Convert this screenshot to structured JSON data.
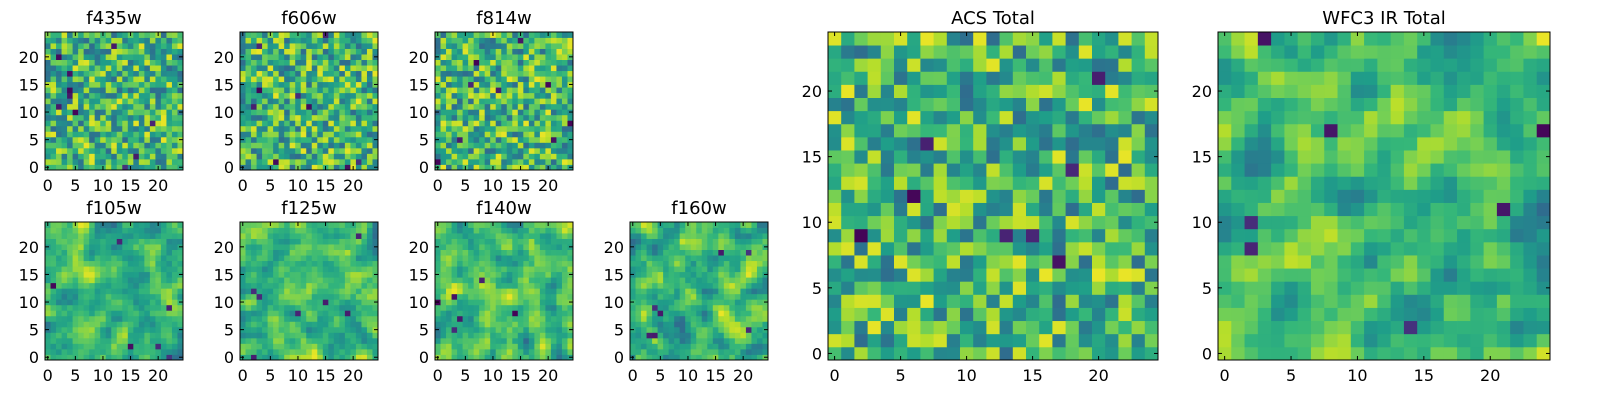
{
  "chart_data": [
    {
      "type": "heatmap",
      "title": "f435w",
      "xticks": [
        "0",
        "5",
        "10",
        "15",
        "20"
      ],
      "yticks": [
        "0",
        "5",
        "10",
        "15",
        "20"
      ],
      "xlim": [
        0,
        25
      ],
      "ylim": [
        0,
        25
      ],
      "colormap": "viridis",
      "seed": 11,
      "smooth": 0,
      "darkcount": 10
    },
    {
      "type": "heatmap",
      "title": "f606w",
      "xticks": [
        "0",
        "5",
        "10",
        "15",
        "20"
      ],
      "yticks": [
        "0",
        "5",
        "10",
        "15",
        "20"
      ],
      "xlim": [
        0,
        25
      ],
      "ylim": [
        0,
        25
      ],
      "colormap": "viridis",
      "seed": 23,
      "smooth": 0,
      "darkcount": 9
    },
    {
      "type": "heatmap",
      "title": "f814w",
      "xticks": [
        "0",
        "5",
        "10",
        "15",
        "20"
      ],
      "yticks": [
        "0",
        "5",
        "10",
        "15",
        "20"
      ],
      "xlim": [
        0,
        25
      ],
      "ylim": [
        0,
        25
      ],
      "colormap": "viridis",
      "seed": 37,
      "smooth": 0,
      "darkcount": 9
    },
    {
      "type": "heatmap",
      "title": "f105w",
      "xticks": [
        "0",
        "5",
        "10",
        "15",
        "20"
      ],
      "yticks": [
        "0",
        "5",
        "10",
        "15",
        "20"
      ],
      "xlim": [
        0,
        25
      ],
      "ylim": [
        0,
        25
      ],
      "colormap": "viridis",
      "seed": 41,
      "smooth": 1,
      "darkcount": 6
    },
    {
      "type": "heatmap",
      "title": "f125w",
      "xticks": [
        "0",
        "5",
        "10",
        "15",
        "20"
      ],
      "yticks": [
        "0",
        "5",
        "10",
        "15",
        "20"
      ],
      "xlim": [
        0,
        25
      ],
      "ylim": [
        0,
        25
      ],
      "colormap": "viridis",
      "seed": 53,
      "smooth": 1,
      "darkcount": 7
    },
    {
      "type": "heatmap",
      "title": "f140w",
      "xticks": [
        "0",
        "5",
        "10",
        "15",
        "20"
      ],
      "yticks": [
        "0",
        "5",
        "10",
        "15",
        "20"
      ],
      "xlim": [
        0,
        25
      ],
      "ylim": [
        0,
        25
      ],
      "colormap": "viridis",
      "seed": 67,
      "smooth": 1,
      "darkcount": 6
    },
    {
      "type": "heatmap",
      "title": "f160w",
      "xticks": [
        "0",
        "5",
        "10",
        "15",
        "20"
      ],
      "yticks": [
        "0",
        "5",
        "10",
        "15",
        "20"
      ],
      "xlim": [
        0,
        25
      ],
      "ylim": [
        0,
        25
      ],
      "colormap": "viridis",
      "seed": 79,
      "smooth": 1,
      "darkcount": 7
    },
    {
      "type": "heatmap",
      "title": "ACS Total",
      "xticks": [
        "0",
        "5",
        "10",
        "15",
        "20"
      ],
      "yticks": [
        "0",
        "5",
        "10",
        "15",
        "20"
      ],
      "xlim": [
        0,
        25
      ],
      "ylim": [
        0,
        25
      ],
      "colormap": "viridis",
      "seed": 97,
      "smooth": 0,
      "darkcount": 8
    },
    {
      "type": "heatmap",
      "title": "WFC3 IR Total",
      "xticks": [
        "0",
        "5",
        "10",
        "15",
        "20"
      ],
      "yticks": [
        "0",
        "5",
        "10",
        "15",
        "20"
      ],
      "xlim": [
        0,
        25
      ],
      "ylim": [
        0,
        25
      ],
      "colormap": "viridis",
      "seed": 113,
      "smooth": 1,
      "darkcount": 7
    }
  ]
}
